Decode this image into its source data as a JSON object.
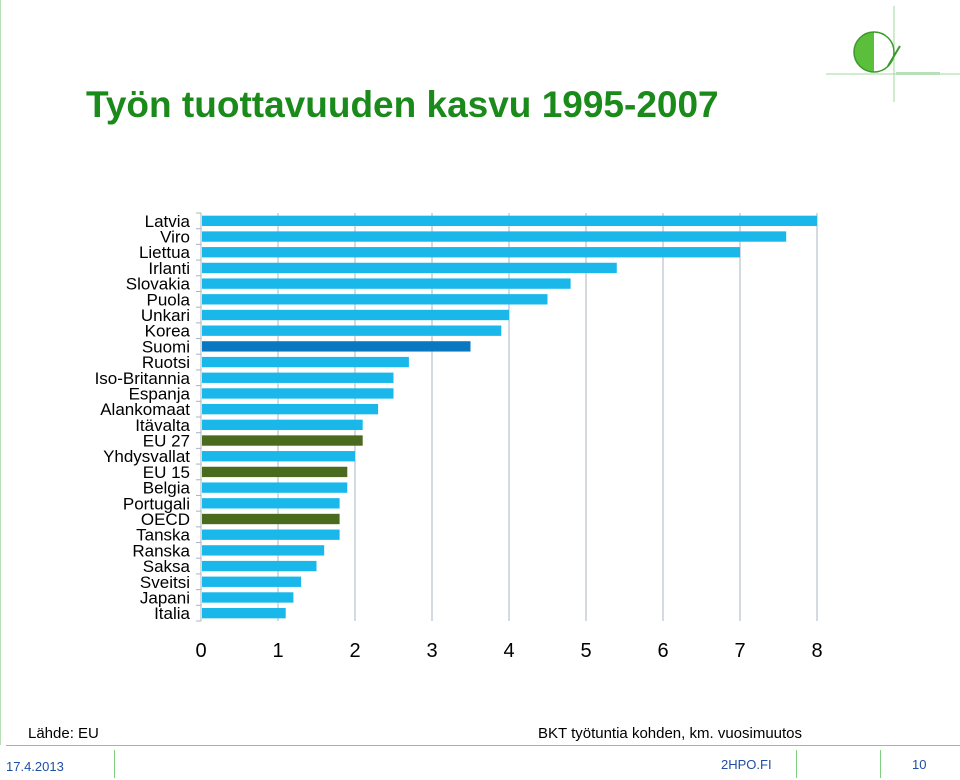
{
  "title": "Työn tuottavuuden kasvu 1995-2007",
  "colors": {
    "title": "#1a8a1a",
    "bar_default": "#1ab8ea",
    "bar_finland": "#0a78c0",
    "bar_aggregate": "#4a6b1e",
    "grid": "#a8b4c2",
    "accent_green": "#7fcf7f"
  },
  "chart_data": {
    "type": "bar",
    "orientation": "horizontal",
    "categories": [
      "Latvia",
      "Viro",
      "Liettua",
      "Irlanti",
      "Slovakia",
      "Puola",
      "Unkari",
      "Korea",
      "Suomi",
      "Ruotsi",
      "Iso-Britannia",
      "Espanja",
      "Alankomaat",
      "Itävalta",
      "EU 27",
      "Yhdysvallat",
      "EU 15",
      "Belgia",
      "Portugali",
      "OECD",
      "Tanska",
      "Ranska",
      "Saksa",
      "Sveitsi",
      "Japani",
      "Italia"
    ],
    "values": [
      8.0,
      7.6,
      7.0,
      5.4,
      4.8,
      4.5,
      4.0,
      3.9,
      3.5,
      2.7,
      2.5,
      2.5,
      2.3,
      2.1,
      2.1,
      2.0,
      1.9,
      1.9,
      1.8,
      1.8,
      1.8,
      1.6,
      1.5,
      1.3,
      1.2,
      1.1
    ],
    "highlight": [
      "default",
      "default",
      "default",
      "default",
      "default",
      "default",
      "default",
      "default",
      "finland",
      "default",
      "default",
      "default",
      "default",
      "default",
      "aggregate",
      "default",
      "aggregate",
      "default",
      "default",
      "aggregate",
      "default",
      "default",
      "default",
      "default",
      "default",
      "default"
    ],
    "xlim": [
      0,
      8
    ],
    "xticks": [
      0,
      1,
      2,
      3,
      4,
      5,
      6,
      7,
      8
    ],
    "grid": true,
    "xlabel": "",
    "ylabel": ""
  },
  "footer": {
    "source": "Lähde: EU",
    "unit_note": "BKT työtuntia kohden, km. vuosimuutos",
    "date": "17.4.2013",
    "site": "2HPO.FI",
    "page": "10"
  }
}
